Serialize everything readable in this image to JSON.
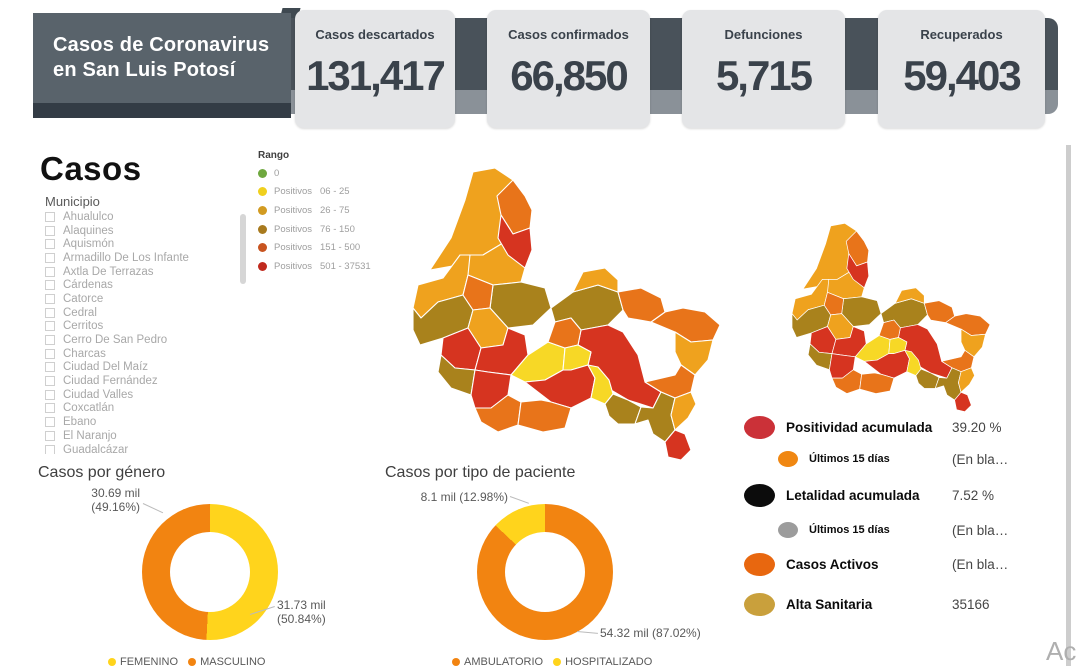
{
  "header": {
    "title_line1": "Casos de Coronavirus",
    "title_line2": "en San Luis Potosí",
    "cards": [
      {
        "label": "Casos descartados",
        "value": "131,417"
      },
      {
        "label": "Casos confirmados",
        "value": "66,850"
      },
      {
        "label": "Defunciones",
        "value": "5,715"
      },
      {
        "label": "Recuperados",
        "value": "59,403"
      }
    ]
  },
  "section_title": "Casos",
  "municipio_filter": {
    "label": "Municipio",
    "items": [
      "Ahualulco",
      "Alaquines",
      "Aquismón",
      "Armadillo De Los Infante",
      "Axtla De Terrazas",
      "Cárdenas",
      "Catorce",
      "Cedral",
      "Cerritos",
      "Cerro De San Pedro",
      "Charcas",
      "Ciudad Del Maíz",
      "Ciudad Fernández",
      "Ciudad Valles",
      "Coxcatlán",
      "Ebano",
      "El Naranjo",
      "Guadalcázar"
    ]
  },
  "rango_legend": {
    "label": "Rango",
    "items": [
      {
        "name": "0",
        "range": "",
        "color": "#6FA83F"
      },
      {
        "name": "Positivos",
        "range": "06 - 25",
        "color": "#F0D01E"
      },
      {
        "name": "Positivos",
        "range": "26 - 75",
        "color": "#D29B21"
      },
      {
        "name": "Positivos",
        "range": "76 - 150",
        "color": "#A87A1E"
      },
      {
        "name": "Positivos",
        "range": "151 - 500",
        "color": "#C85420"
      },
      {
        "name": "Positivos",
        "range": "501 - 37531",
        "color": "#C02A1E"
      }
    ]
  },
  "map_palette": {
    "yellow": "#F7D826",
    "amber": "#EFA21E",
    "orange": "#E8741A",
    "olive": "#A9821C",
    "red": "#D63420"
  },
  "kpis": [
    {
      "label": "Positividad acumulada",
      "value": "39.20 %",
      "dot_color": "#CB3138",
      "indent": false
    },
    {
      "label": "Últimos 15 días",
      "value": "(En bla…",
      "dot_color": "#F08712",
      "indent": true
    },
    {
      "label": "Letalidad acumulada",
      "value": "7.52 %",
      "dot_color": "#0C0C0C",
      "indent": false
    },
    {
      "label": "Últimos 15 días",
      "value": "(En bla…",
      "dot_color": "#9C9C9C",
      "indent": true
    },
    {
      "label": "Casos Activos",
      "value": "(En bla…",
      "dot_color": "#E8670F",
      "indent": false
    },
    {
      "label": "Alta Sanitaria",
      "value": "35166",
      "dot_color": "#C9A03C",
      "indent": false
    }
  ],
  "chart_data": [
    {
      "type": "pie",
      "title": "Casos por género",
      "donut": true,
      "legend_position": "bottom",
      "series": [
        {
          "name": "FEMENINO",
          "value_mil": 31.73,
          "pct": 50.84,
          "color": "#FFD41C"
        },
        {
          "name": "MASCULINO",
          "value_mil": 30.69,
          "pct": 49.16,
          "color": "#F28411"
        }
      ],
      "callout1_line1": "30.69 mil",
      "callout1_line2": "(49.16%)",
      "callout2_line1": "31.73 mil",
      "callout2_line2": "(50.84%)"
    },
    {
      "type": "pie",
      "title": "Casos por tipo de paciente",
      "donut": true,
      "legend_position": "bottom",
      "series": [
        {
          "name": "AMBULATORIO",
          "value_mil": 54.32,
          "pct": 87.02,
          "color": "#F28411"
        },
        {
          "name": "HOSPITALIZADO",
          "value_mil": 8.1,
          "pct": 12.98,
          "color": "#FFD41C"
        }
      ],
      "callout1": "8.1 mil (12.98%)",
      "callout2": "54.32 mil (87.02%)"
    }
  ],
  "watermark": "Ac"
}
